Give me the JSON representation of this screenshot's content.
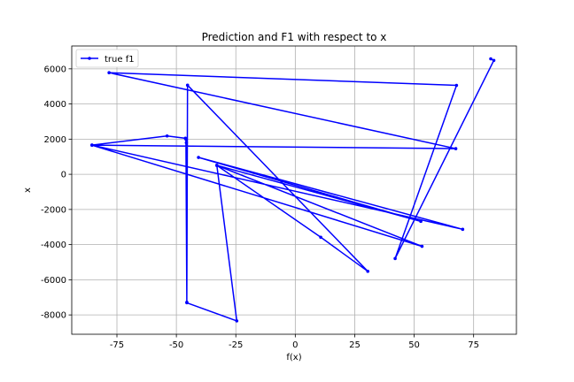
{
  "chart_data": {
    "type": "line",
    "title": "Prediction and F1 with respect to x",
    "xlabel": "f(x)",
    "ylabel": "x",
    "xlim": [
      -94,
      93
    ],
    "ylim": [
      -9100,
      7300
    ],
    "xticks": [
      -75,
      -50,
      -25,
      0,
      25,
      50,
      75
    ],
    "yticks": [
      -8000,
      -6000,
      -4000,
      -2000,
      0,
      2000,
      4000,
      6000
    ],
    "grid": true,
    "legend_position": "upper-left",
    "series": [
      {
        "name": "true f1",
        "color": "#0000ff",
        "marker": "point",
        "x": [
          82.2,
          83.5,
          42.0,
          67.8,
          -78.3,
          67.5,
          -85.5,
          53.3,
          -33.0,
          -24.6,
          -45.6,
          -45.8,
          -46.2,
          -53.9,
          -85.5,
          70.4,
          -40.7,
          52.8,
          -33.0,
          10.7,
          30.5,
          -45.3,
          -45.6,
          -46.0
        ],
        "y": [
          6570,
          6480,
          -4790,
          5060,
          5780,
          1460,
          1660,
          -4100,
          510,
          -8340,
          -7310,
          1800,
          2050,
          2180,
          1660,
          -3130,
          960,
          -2680,
          510,
          -3580,
          -5520,
          5070,
          -7280,
          2000
        ]
      }
    ]
  }
}
